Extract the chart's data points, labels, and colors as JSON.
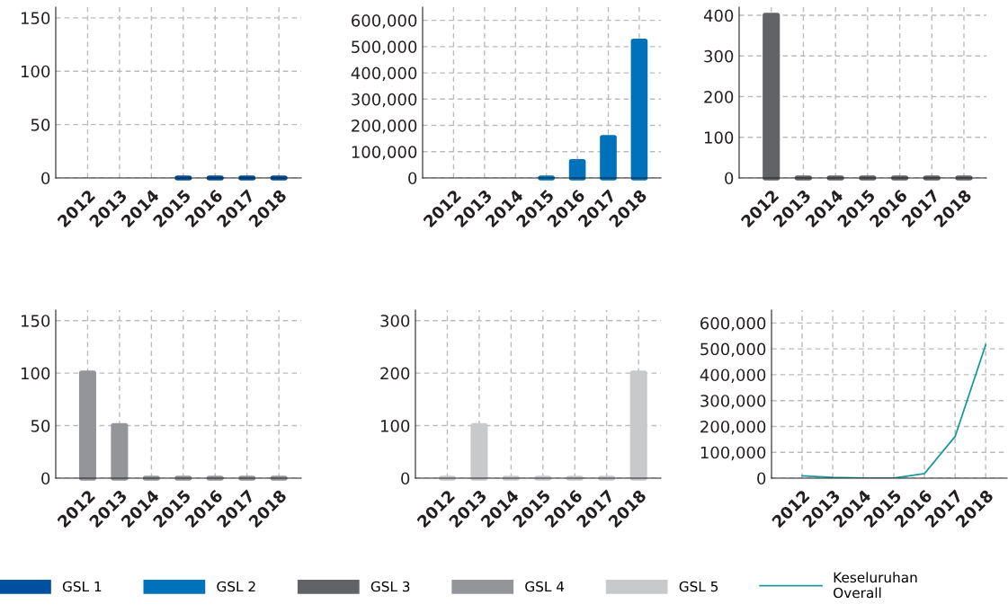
{
  "chart_data": [
    {
      "type": "bar",
      "categories": [
        "2012",
        "2013",
        "2014",
        "2015",
        "2016",
        "2017",
        "2018"
      ],
      "series": [
        {
          "name": "GSL 1",
          "color": "#0050a0",
          "values": [
            null,
            null,
            null,
            0,
            0,
            0,
            0
          ]
        }
      ],
      "ylim": [
        0,
        160
      ],
      "yticks": [
        0,
        50,
        100,
        150
      ],
      "grid": true,
      "legend": "bottom"
    },
    {
      "type": "bar",
      "categories": [
        "2012",
        "2013",
        "2014",
        "2015",
        "2016",
        "2017",
        "2018"
      ],
      "series": [
        {
          "name": "GSL 2",
          "color": "#0072bb",
          "values": [
            null,
            null,
            null,
            0,
            62000,
            154000,
            521000
          ]
        }
      ],
      "ylim": [
        0,
        650000
      ],
      "yticks": [
        {
          "value": 0,
          "label": "0"
        },
        {
          "value": 100000,
          "label": "100,000"
        },
        {
          "value": 200000,
          "label": "200,000"
        },
        {
          "value": 300000,
          "label": "300,000"
        },
        {
          "value": 400000,
          "label": "400,000"
        },
        {
          "value": 500000,
          "label": "500,000"
        },
        {
          "value": 600000,
          "label": "600,000"
        }
      ],
      "grid": true,
      "legend": "bottom"
    },
    {
      "type": "bar",
      "categories": [
        "2012",
        "2013",
        "2014",
        "2015",
        "2016",
        "2017",
        "2018"
      ],
      "series": [
        {
          "name": "GSL 3",
          "color": "#626366",
          "values": [
            400,
            0,
            0,
            0,
            0,
            0,
            0
          ]
        }
      ],
      "ylim": [
        0,
        420
      ],
      "yticks": [
        0,
        100,
        200,
        300,
        400
      ],
      "grid": true,
      "legend": "bottom"
    },
    {
      "type": "bar",
      "categories": [
        "2012",
        "2013",
        "2014",
        "2015",
        "2016",
        "2017",
        "2018"
      ],
      "series": [
        {
          "name": "GSL 4",
          "color": "#939598",
          "values": [
            100,
            50,
            0,
            0,
            0,
            0,
            0
          ]
        }
      ],
      "ylim": [
        0,
        160
      ],
      "yticks": [
        0,
        50,
        100,
        150
      ],
      "grid": true,
      "legend": "bottom"
    },
    {
      "type": "bar",
      "categories": [
        "2012",
        "2013",
        "2014",
        "2015",
        "2016",
        "2017",
        "2018"
      ],
      "series": [
        {
          "name": "GSL 5",
          "color": "#c8c9cb",
          "values": [
            0,
            100,
            0,
            0,
            0,
            0,
            200
          ]
        }
      ],
      "ylim": [
        0,
        320
      ],
      "yticks": [
        0,
        100,
        200,
        300
      ],
      "grid": true,
      "legend": "bottom"
    },
    {
      "type": "line",
      "categories": [
        "2012",
        "2013",
        "2014",
        "2015",
        "2016",
        "2017",
        "2018"
      ],
      "series": [
        {
          "name": "Keseluruhan\nOverall",
          "color": "#1a9a9a",
          "values": [
            9000,
            3000,
            0,
            0,
            18000,
            161000,
            516000
          ]
        }
      ],
      "ylim": [
        0,
        650000
      ],
      "yticks": [
        {
          "value": 0,
          "label": "0"
        },
        {
          "value": 100000,
          "label": "100,000"
        },
        {
          "value": 200000,
          "label": "200,000"
        },
        {
          "value": 300000,
          "label": "300,000"
        },
        {
          "value": 400000,
          "label": "400,000"
        },
        {
          "value": 500000,
          "label": "500,000"
        },
        {
          "value": 600000,
          "label": "600,000"
        }
      ],
      "grid": true,
      "legend": "bottom",
      "marker": "none",
      "line_style": "solid"
    }
  ]
}
